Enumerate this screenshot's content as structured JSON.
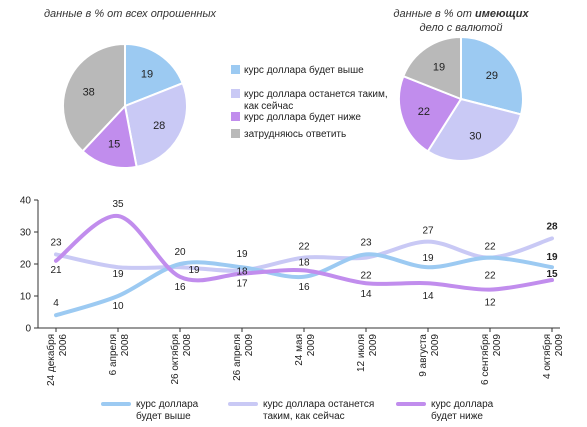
{
  "colors": {
    "higher": "#9ccaf2",
    "same": "#c9c9f5",
    "lower": "#c18ded",
    "undecided": "#b9b9b9",
    "axis": "#333333"
  },
  "legend_top": [
    {
      "key": "higher",
      "lines": [
        "курс доллара будет выше"
      ]
    },
    {
      "key": "same",
      "lines": [
        "курс доллара останется таким,",
        "как сейчас"
      ]
    },
    {
      "key": "lower",
      "lines": [
        "курс доллара будет ниже"
      ]
    },
    {
      "key": "undecided",
      "lines": [
        "затрудняюсь ответить"
      ]
    }
  ],
  "legend_bottom": [
    {
      "key": "higher",
      "lines": [
        "курс доллара",
        "будет выше"
      ]
    },
    {
      "key": "same",
      "lines": [
        "курс доллара останется",
        "таким, как сейчас"
      ]
    },
    {
      "key": "lower",
      "lines": [
        "курс доллара",
        "будет ниже"
      ]
    }
  ],
  "chart_data": [
    {
      "type": "pie",
      "title_parts": [
        "данные в % от всех опрошенных"
      ],
      "slices": [
        {
          "key": "higher",
          "label": "курс доллара будет выше",
          "value": 19
        },
        {
          "key": "same",
          "label": "курс доллара останется таким, как сейчас",
          "value": 28
        },
        {
          "key": "lower",
          "label": "курс доллара будет ниже",
          "value": 15
        },
        {
          "key": "undecided",
          "label": "затрудняюсь ответить",
          "value": 38
        }
      ]
    },
    {
      "type": "pie",
      "title_parts": [
        "данные в % от ",
        "имеющих",
        "дело с валютой"
      ],
      "slices": [
        {
          "key": "higher",
          "label": "курс доллара будет выше",
          "value": 29
        },
        {
          "key": "same",
          "label": "курс доллара останется таким, как сейчас",
          "value": 30
        },
        {
          "key": "lower",
          "label": "курс доллара будет ниже",
          "value": 22
        },
        {
          "key": "undecided",
          "label": "затрудняюсь ответить",
          "value": 19
        }
      ]
    },
    {
      "type": "line",
      "ylim": [
        0,
        40
      ],
      "yticks": [
        0,
        10,
        20,
        30,
        40
      ],
      "categories": [
        [
          "24 декабря",
          "2006"
        ],
        [
          "6 апреля",
          "2008"
        ],
        [
          "26 октября",
          "2008"
        ],
        [
          "26 апреля",
          "2009"
        ],
        [
          "24 мая",
          "2009"
        ],
        [
          "12 июля",
          "2009"
        ],
        [
          "9 августа",
          "2009"
        ],
        [
          "6 сентября",
          "2009"
        ],
        [
          "4 октября",
          "2009"
        ]
      ],
      "series": [
        {
          "key": "higher",
          "name": "курс доллара будет выше",
          "values": [
            4,
            10,
            20,
            19,
            16,
            23,
            19,
            22,
            19
          ]
        },
        {
          "key": "same",
          "name": "курс доллара останется таким, как сейчас",
          "values": [
            23,
            19,
            19,
            18,
            22,
            22,
            27,
            22,
            28
          ]
        },
        {
          "key": "lower",
          "name": "курс доллара будет ниже",
          "values": [
            21,
            35,
            16,
            17,
            18,
            14,
            14,
            12,
            15
          ]
        }
      ],
      "labels": [
        {
          "series": "higher",
          "i": 0,
          "text": "4"
        },
        {
          "series": "same",
          "i": 0,
          "text": "23"
        },
        {
          "series": "lower",
          "i": 0,
          "text": "21"
        },
        {
          "series": "lower",
          "i": 1,
          "text": "35"
        },
        {
          "series": "same",
          "i": 1,
          "text": "19"
        },
        {
          "series": "higher",
          "i": 1,
          "text": "10"
        },
        {
          "series": "higher",
          "i": 2,
          "text": "20"
        },
        {
          "series": "same",
          "i": 2,
          "text": "19"
        },
        {
          "series": "lower",
          "i": 2,
          "text": "16"
        },
        {
          "series": "higher",
          "i": 3,
          "text": "19"
        },
        {
          "series": "same",
          "i": 3,
          "text": "18"
        },
        {
          "series": "lower",
          "i": 3,
          "text": "17"
        },
        {
          "series": "same",
          "i": 4,
          "text": "22"
        },
        {
          "series": "lower",
          "i": 4,
          "text": "18"
        },
        {
          "series": "higher",
          "i": 4,
          "text": "16"
        },
        {
          "series": "higher",
          "i": 5,
          "text": "23"
        },
        {
          "series": "same",
          "i": 5,
          "text": "22"
        },
        {
          "series": "lower",
          "i": 5,
          "text": "14"
        },
        {
          "series": "same",
          "i": 6,
          "text": "27"
        },
        {
          "series": "higher",
          "i": 6,
          "text": "19"
        },
        {
          "series": "lower",
          "i": 6,
          "text": "14"
        },
        {
          "series": "higher",
          "i": 7,
          "text": "22"
        },
        {
          "series": "same",
          "i": 7,
          "text": "22"
        },
        {
          "series": "lower",
          "i": 7,
          "text": "12"
        },
        {
          "series": "same",
          "i": 8,
          "text": "28"
        },
        {
          "series": "higher",
          "i": 8,
          "text": "19"
        },
        {
          "series": "lower",
          "i": 8,
          "text": "15"
        }
      ]
    }
  ]
}
